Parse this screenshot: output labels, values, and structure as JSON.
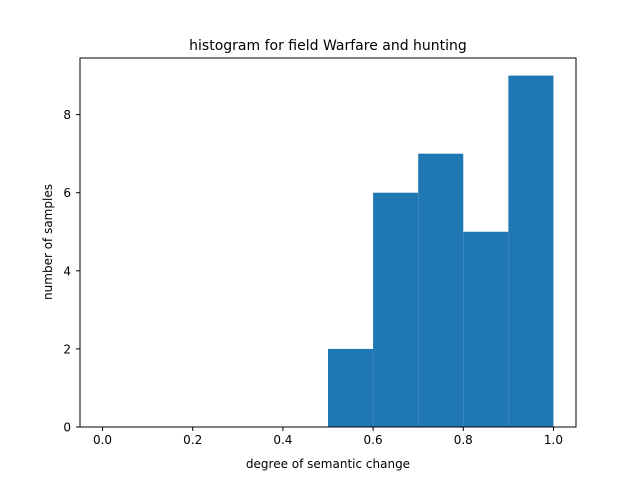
{
  "chart_data": {
    "type": "bar",
    "title": "histogram for field Warfare and hunting",
    "xlabel": "degree of semantic change",
    "ylabel": "number of samples",
    "bins": [
      {
        "start": 0.5,
        "end": 0.6,
        "count": 2
      },
      {
        "start": 0.6,
        "end": 0.7,
        "count": 6
      },
      {
        "start": 0.7,
        "end": 0.8,
        "count": 7
      },
      {
        "start": 0.8,
        "end": 0.9,
        "count": 5
      },
      {
        "start": 0.9,
        "end": 1.0,
        "count": 9
      }
    ],
    "xlim": [
      -0.05,
      1.05
    ],
    "ylim": [
      0,
      9.45
    ],
    "xticks": [
      "0.0",
      "0.2",
      "0.4",
      "0.6",
      "0.8",
      "1.0"
    ],
    "yticks": [
      "0",
      "2",
      "4",
      "6",
      "8"
    ],
    "grid": false,
    "bar_color": "#1f77b4"
  }
}
